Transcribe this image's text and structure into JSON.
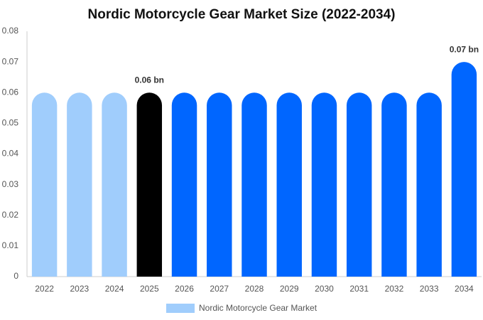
{
  "chart_data": {
    "type": "bar",
    "title": "Nordic Motorcycle Gear Market Size (2022-2034)",
    "categories": [
      "2022",
      "2023",
      "2024",
      "2025",
      "2026",
      "2027",
      "2028",
      "2029",
      "2030",
      "2031",
      "2032",
      "2033",
      "2034"
    ],
    "series": [
      {
        "name": "Nordic Motorcycle Gear Market",
        "color": "#a0cdfc",
        "colors": [
          "#a0cdfc",
          "#a0cdfc",
          "#a0cdfc",
          "#000000",
          "#0066ff",
          "#0066ff",
          "#0066ff",
          "#0066ff",
          "#0066ff",
          "#0066ff",
          "#0066ff",
          "#0066ff",
          "#0066ff"
        ],
        "values": [
          0.06,
          0.06,
          0.06,
          0.06,
          0.06,
          0.06,
          0.06,
          0.06,
          0.06,
          0.06,
          0.06,
          0.06,
          0.07
        ],
        "value_labels": [
          null,
          null,
          null,
          "0.06 bn",
          null,
          null,
          null,
          null,
          null,
          null,
          null,
          null,
          "0.07 bn"
        ]
      }
    ],
    "ylim": [
      0,
      0.08
    ],
    "yticks": [
      0,
      0.01,
      0.02,
      0.03,
      0.04,
      0.05,
      0.06,
      0.07,
      0.08
    ],
    "grid": false,
    "legend": "bottom"
  }
}
